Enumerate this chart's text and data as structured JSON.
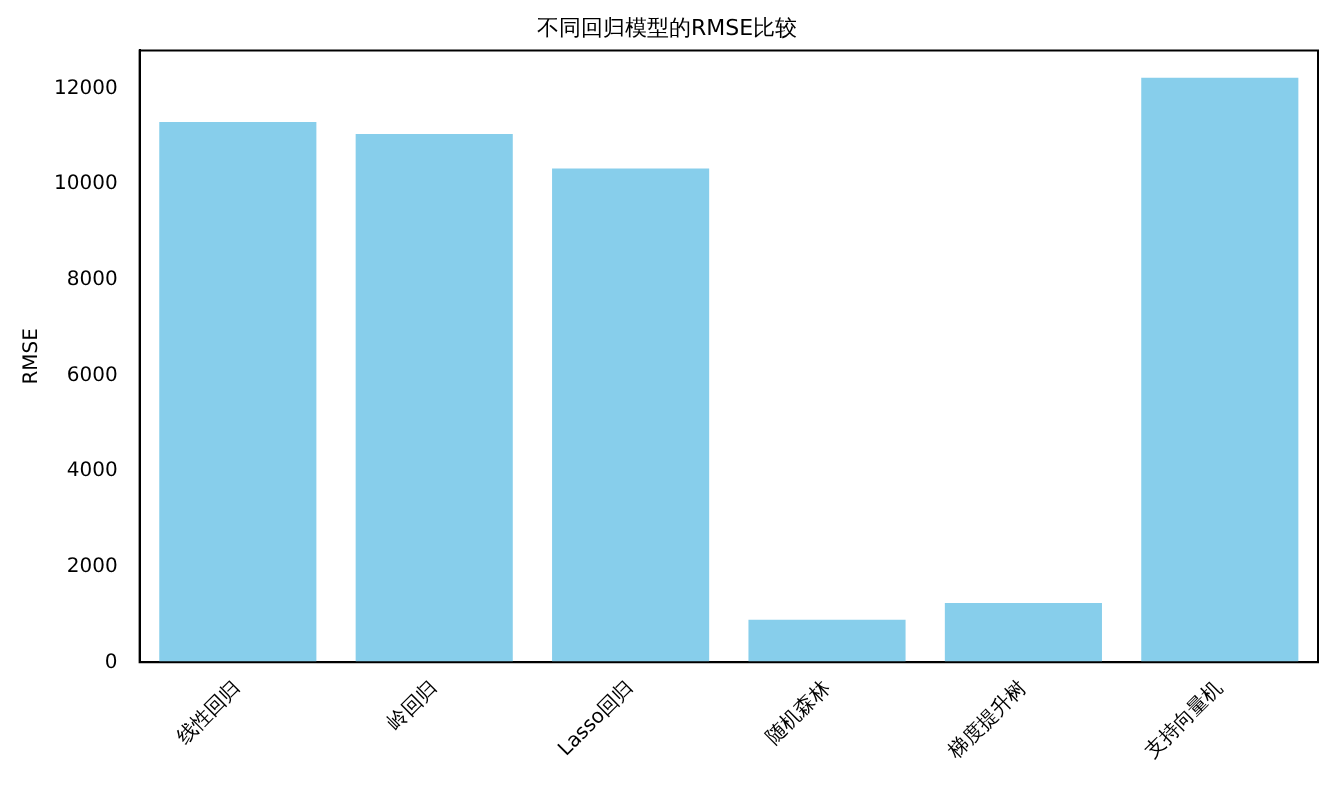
{
  "chart_data": {
    "type": "bar",
    "title": "不同回归模型的RMSE比较",
    "ylabel": "RMSE",
    "categories": [
      "线性回归",
      "岭回归",
      "Lasso回归",
      "随机森林",
      "梯度提升树",
      "支持向量机"
    ],
    "values": [
      11300,
      11050,
      10330,
      890,
      1240,
      12230
    ],
    "color": "#87ceeb",
    "ylim": [
      0,
      12800
    ],
    "yticks": [
      0,
      2000,
      4000,
      6000,
      8000,
      10000,
      12000
    ],
    "grid": false,
    "legend": false
  }
}
